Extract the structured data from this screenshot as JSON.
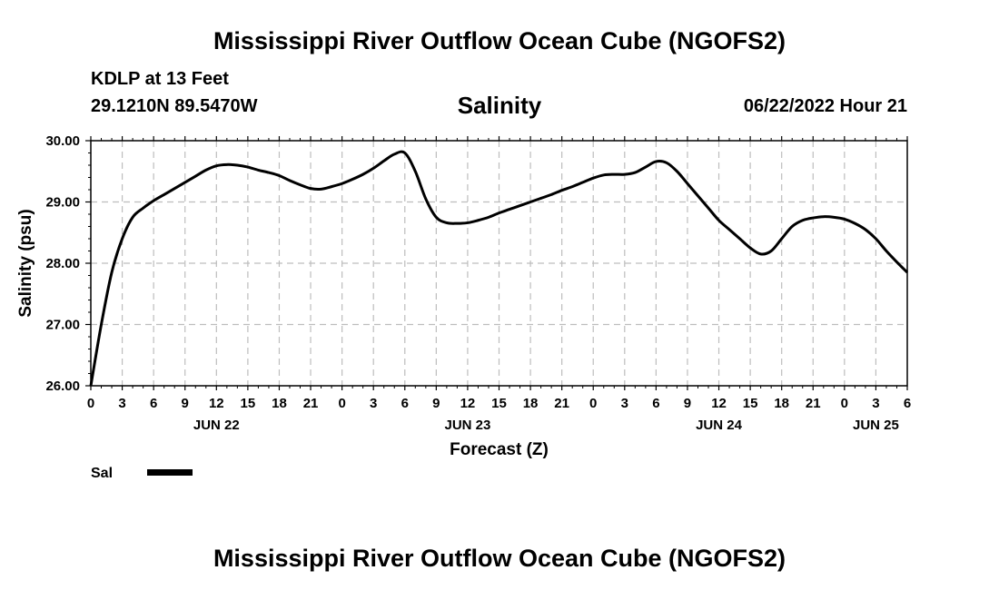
{
  "header": {
    "title": "Mississippi River Outflow Ocean Cube (NGOFS2)",
    "station": "KDLP at 13 Feet",
    "coords": "29.1210N  89.5470W",
    "parameter": "Salinity",
    "timestamp": "06/22/2022 Hour 21"
  },
  "footer": {
    "title": "Mississippi River Outflow Ocean Cube (NGOFS2)"
  },
  "chart_data": {
    "type": "line",
    "title": "Salinity",
    "xlabel": "Forecast (Z)",
    "ylabel": "Salinity (psu)",
    "xlim": [
      0,
      78
    ],
    "ylim": [
      26.0,
      30.0
    ],
    "grid": true,
    "x_tick_labels": [
      "0",
      "3",
      "6",
      "9",
      "12",
      "15",
      "18",
      "21",
      "0",
      "3",
      "6",
      "9",
      "12",
      "15",
      "18",
      "21",
      "0",
      "3",
      "6",
      "9",
      "12",
      "15",
      "18",
      "21",
      "0",
      "3",
      "6"
    ],
    "y_ticks": [
      26.0,
      27.0,
      28.0,
      29.0,
      30.0
    ],
    "y_tick_labels": [
      "26.00",
      "27.00",
      "28.00",
      "29.00",
      "30.00"
    ],
    "date_labels": [
      {
        "label": "JUN 22",
        "x": 12
      },
      {
        "label": "JUN 23",
        "x": 36
      },
      {
        "label": "JUN 24",
        "x": 60
      },
      {
        "label": "JUN 25",
        "x": 75
      }
    ],
    "legend": [
      {
        "name": "Sal",
        "placement": "bottom-left"
      }
    ],
    "series": [
      {
        "name": "Sal",
        "color": "#000000",
        "x": [
          0,
          1,
          2,
          3,
          4,
          5,
          6,
          7,
          8,
          9,
          10,
          11,
          12,
          13,
          14,
          15,
          16,
          17,
          18,
          19,
          20,
          21,
          22,
          23,
          24,
          25,
          26,
          27,
          28,
          29,
          30,
          31,
          32,
          33,
          34,
          35,
          36,
          37,
          38,
          39,
          40,
          41,
          42,
          43,
          44,
          45,
          46,
          47,
          48,
          49,
          50,
          51,
          52,
          53,
          54,
          55,
          56,
          57,
          58,
          59,
          60,
          61,
          62,
          63,
          64,
          65,
          66,
          67,
          68,
          69,
          70,
          71,
          72,
          73,
          74,
          75,
          76,
          77,
          78
        ],
        "values": [
          26.0,
          27.0,
          27.85,
          28.4,
          28.75,
          28.9,
          29.02,
          29.12,
          29.22,
          29.32,
          29.42,
          29.52,
          29.59,
          29.61,
          29.6,
          29.57,
          29.52,
          29.48,
          29.43,
          29.35,
          29.28,
          29.22,
          29.21,
          29.25,
          29.3,
          29.37,
          29.45,
          29.55,
          29.67,
          29.78,
          29.8,
          29.5,
          29.05,
          28.75,
          28.66,
          28.65,
          28.66,
          28.7,
          28.75,
          28.82,
          28.88,
          28.94,
          29.0,
          29.06,
          29.12,
          29.19,
          29.25,
          29.32,
          29.39,
          29.44,
          29.45,
          29.45,
          29.48,
          29.57,
          29.66,
          29.64,
          29.5,
          29.3,
          29.1,
          28.9,
          28.7,
          28.55,
          28.4,
          28.25,
          28.15,
          28.2,
          28.4,
          28.6,
          28.7,
          28.74,
          28.76,
          28.75,
          28.72,
          28.65,
          28.55,
          28.4,
          28.2,
          28.02,
          27.85
        ]
      }
    ]
  }
}
